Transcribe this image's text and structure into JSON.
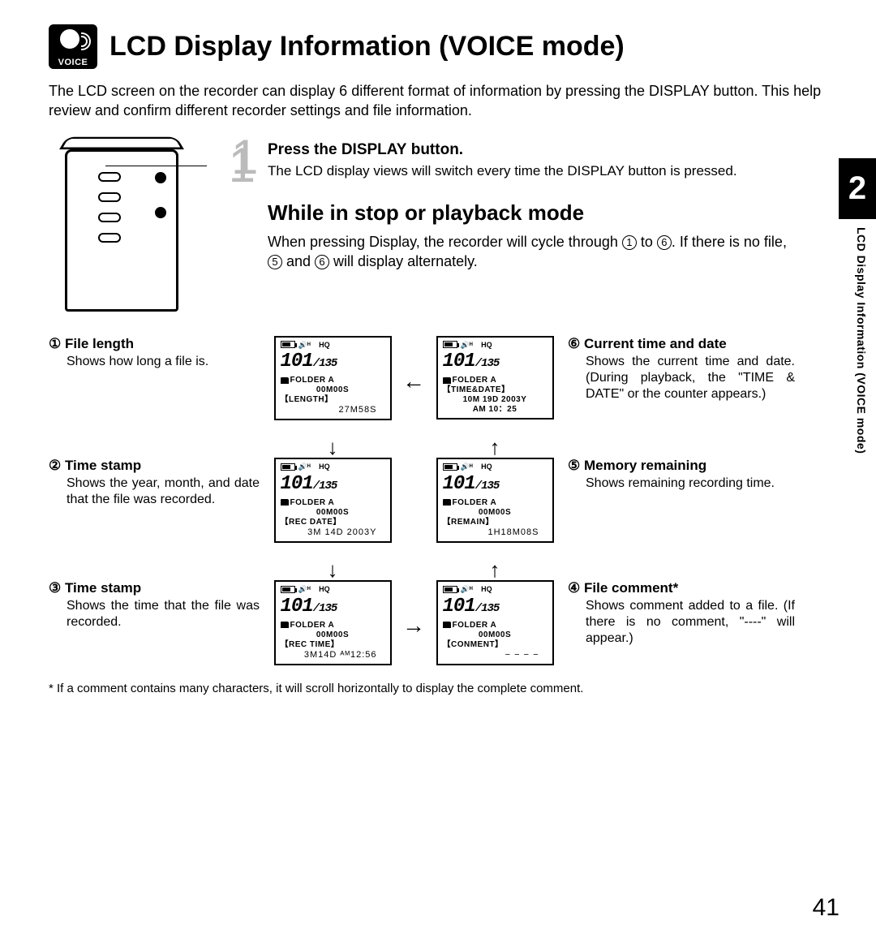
{
  "voice_icon_label": "VOICE",
  "title": "LCD Display Information (VOICE mode)",
  "intro": "The LCD screen on the recorder can display 6 different format of information by pressing the DISPLAY button. This help review and confirm different recorder settings and file information.",
  "chapter_num": "2",
  "vertical_label": "LCD Display Information (VOICE mode)",
  "device_callout_num": "1",
  "step_num": "1",
  "step_title_pre": "Press the ",
  "step_title_kw": "DISPLAY",
  "step_title_post": " button.",
  "step_desc": "The LCD display views will switch every time the DISPLAY button is pressed.",
  "mode_heading": "While in stop or playback mode",
  "mode_desc_1": "When pressing Display, the recorder will cycle through ",
  "mode_desc_2": " to ",
  "mode_desc_3": ". If there is no file, ",
  "mode_desc_4": " and ",
  "mode_desc_5": " will display alternately.",
  "c1": "1",
  "c5": "5",
  "c6": "6",
  "items": {
    "i1": {
      "num": "①",
      "title": "File length",
      "desc": "Shows how long a file is."
    },
    "i2": {
      "num": "②",
      "title": "Time stamp",
      "desc": "Shows the year, month, and date that the file was recorded."
    },
    "i3": {
      "num": "③",
      "title": "Time stamp",
      "desc": "Shows the time that the file was recorded."
    },
    "i4": {
      "num": "④",
      "title": "File comment*",
      "desc": "Shows comment added to a file. (If there is no comment, \"----\" will appear.)"
    },
    "i5": {
      "num": "⑤",
      "title": "Memory remaining",
      "desc": "Shows remaining recording time."
    },
    "i6": {
      "num": "⑥",
      "title": "Current time and date",
      "desc": "Shows the current time and date. (During playback, the \"TIME & DATE\" or the counter appears.)"
    }
  },
  "lcd_common": {
    "hq": "HQ",
    "speaker": "🔊",
    "file": "101",
    "total": "/135",
    "folder": "FOLDER A",
    "hms": "00M00S"
  },
  "lcds": {
    "l1": {
      "label": "【LENGTH】",
      "value": "27M58S"
    },
    "l2": {
      "label": "【REC DATE】",
      "value": "3M 14D 2003Y"
    },
    "l3": {
      "label": "【REC TIME】",
      "value": "3M14D ᴬᴹ12:56"
    },
    "l4": {
      "label": "【CONMENT】",
      "value": "− − − −"
    },
    "l5": {
      "label": "【REMAIN】",
      "value": "1H18M08S"
    },
    "l6": {
      "label": "【TIME&DATE】",
      "value1": "10M 19D 2003Y",
      "value2": "AM 10：25"
    }
  },
  "arrows": {
    "left": "←",
    "right": "→",
    "up": "↑",
    "down": "↓"
  },
  "footnote": "* If a comment contains many characters, it will scroll horizontally to display the complete comment.",
  "page_num": "41"
}
